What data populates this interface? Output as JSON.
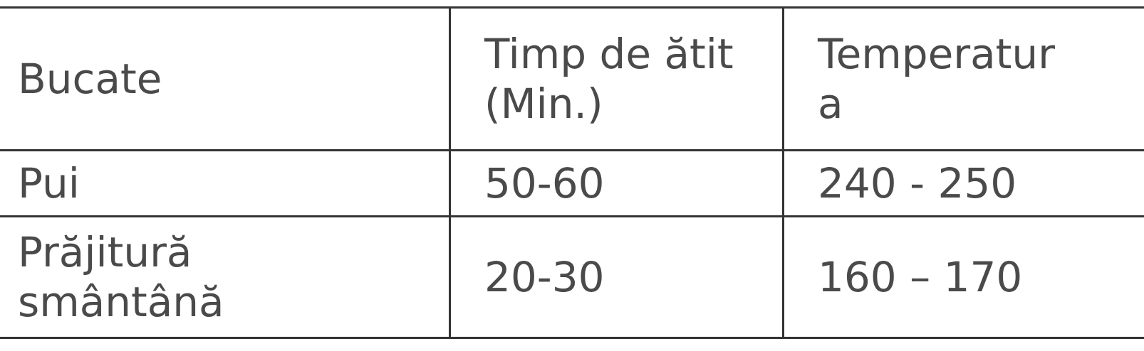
{
  "table": {
    "headers": [
      "Bucate",
      "Timp de ătit\n(Min.)",
      "Temperatur\na"
    ],
    "rows": [
      [
        "Pui",
        "50-60",
        "240 - 250"
      ],
      [
        "Prăjitură\nsmântână",
        "20-30",
        "160 – 170"
      ]
    ]
  }
}
